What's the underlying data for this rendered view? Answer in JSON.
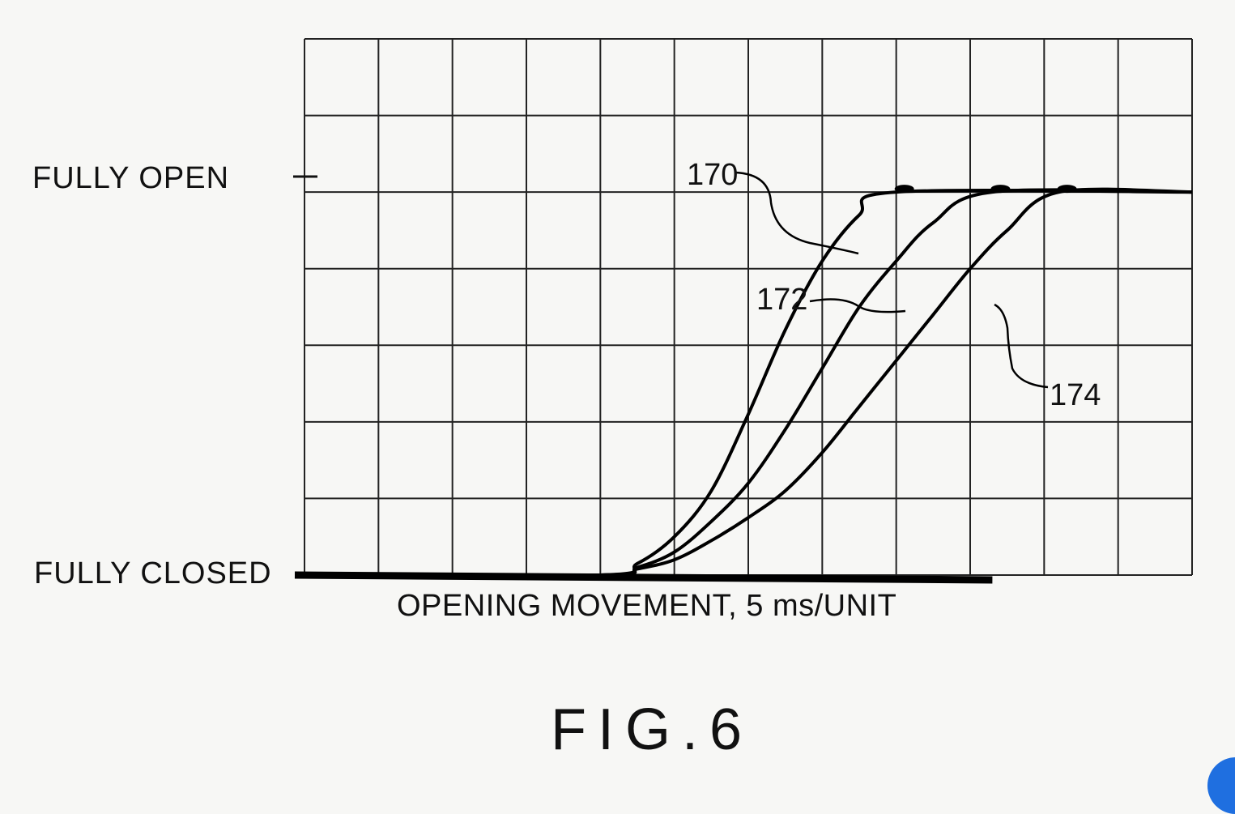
{
  "figure": {
    "title": "FIG.6"
  },
  "chart_data": {
    "type": "line",
    "xlabel": "OPENING MOVEMENT, 5 ms/UNIT",
    "ylabel_top": "FULLY OPEN",
    "ylabel_bottom": "FULLY CLOSED",
    "xlim": [
      0,
      12
    ],
    "ylim": [
      0,
      7
    ],
    "y_closed": 0,
    "y_open": 5,
    "grid": true,
    "series": [
      {
        "name": "170",
        "x": [
          0,
          4,
          4.5,
          5,
          5.5,
          6,
          6.5,
          7,
          7.5,
          8,
          12
        ],
        "y": [
          0,
          0,
          0.15,
          0.5,
          1.1,
          2.1,
          3.2,
          4.1,
          4.7,
          5,
          5
        ]
      },
      {
        "name": "172",
        "x": [
          0,
          4,
          4.5,
          5,
          5.5,
          6,
          6.5,
          7,
          7.5,
          8,
          8.5,
          9.3,
          12
        ],
        "y": [
          0,
          0,
          0.1,
          0.3,
          0.7,
          1.2,
          1.9,
          2.7,
          3.5,
          4.1,
          4.6,
          5,
          5
        ]
      },
      {
        "name": "174",
        "x": [
          0,
          4,
          4.5,
          5,
          5.5,
          6,
          6.5,
          7,
          7.5,
          8,
          8.5,
          9,
          9.5,
          10.2,
          12
        ],
        "y": [
          0,
          0,
          0.08,
          0.2,
          0.45,
          0.75,
          1.1,
          1.6,
          2.2,
          2.8,
          3.4,
          4.0,
          4.5,
          5,
          5
        ]
      }
    ]
  }
}
